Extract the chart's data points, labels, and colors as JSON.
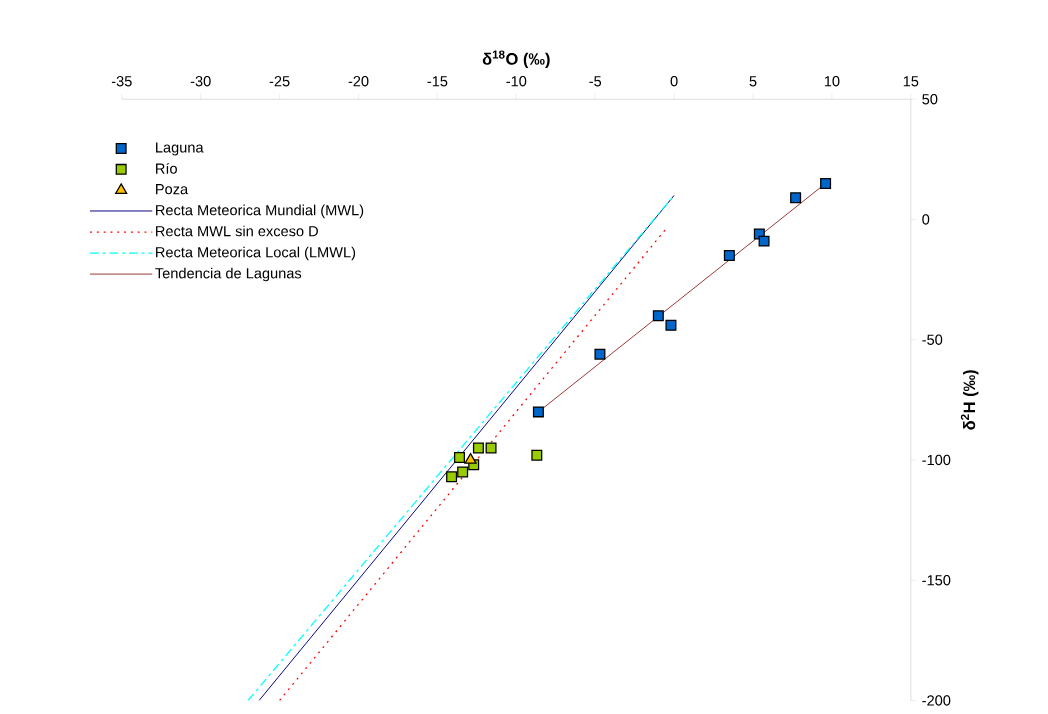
{
  "chart_data": {
    "type": "scatter",
    "xlabel": "δ$^{18}$O (‰)",
    "ylabel": "δ$^{2}$H (‰)",
    "xlim": [
      -35,
      15
    ],
    "ylim": [
      -200,
      50
    ],
    "xticks": [
      -35,
      -30,
      -25,
      -20,
      -15,
      -10,
      -5,
      0,
      5,
      10,
      15
    ],
    "yticks": [
      -200,
      -150,
      -100,
      -50,
      0,
      50
    ],
    "grid": false,
    "legend": "top left",
    "series": [
      {
        "name": "Laguna",
        "marker": "square",
        "color": "#0066cc",
        "x": [
          9.6,
          7.7,
          5.4,
          5.7,
          3.5,
          -1.0,
          -0.2,
          -4.7,
          -8.6
        ],
        "values": [
          15,
          9,
          -6,
          -9,
          -15,
          -40,
          -44,
          -56,
          -80
        ]
      },
      {
        "name": "Río",
        "marker": "square",
        "color": "#99cc00",
        "x": [
          -14.1,
          -13.4,
          -12.7,
          -13.6,
          -12.4,
          -11.6,
          -8.7
        ],
        "values": [
          -107,
          -105,
          -102,
          -99,
          -95,
          -95,
          -98
        ]
      },
      {
        "name": "Poza",
        "marker": "triangle",
        "color": "#ffc000",
        "x": [
          -12.9
        ],
        "values": [
          -100
        ]
      },
      {
        "name": "Recta Meteorica Mundial (MWL)",
        "type": "line",
        "line_style": "solid",
        "marker": "none",
        "color": "#000080",
        "x": [
          -26.3,
          0
        ],
        "values": [
          -200,
          10
        ]
      },
      {
        "name": "Recta MWL sin exceso D",
        "type": "line",
        "line_style": "dotted",
        "marker": "none",
        "color": "#ff0000",
        "x": [
          -25,
          -0.4
        ],
        "values": [
          -200,
          -3
        ]
      },
      {
        "name": "Recta Meteorica Local (LMWL)",
        "type": "line",
        "line_style": "dashed",
        "marker": "none",
        "color": "#00ffff",
        "x": [
          -27,
          0
        ],
        "values": [
          -200,
          10
        ]
      },
      {
        "name": "Tendencia de Lagunas",
        "type": "line",
        "line_style": "solid",
        "marker": "none",
        "color": "#993333",
        "x": [
          -8.6,
          9.6
        ],
        "values": [
          -80,
          15
        ]
      }
    ]
  }
}
